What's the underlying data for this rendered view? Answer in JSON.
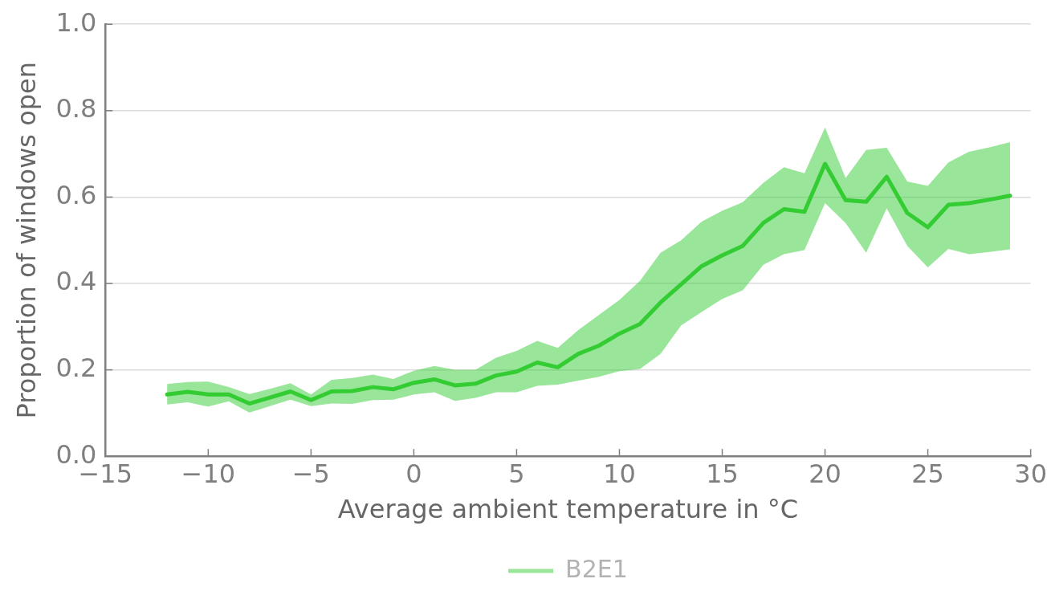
{
  "chart_data": {
    "type": "line",
    "xlabel": "Average ambient temperature in °C",
    "ylabel": "Proportion of windows open",
    "x": [
      -12,
      -11,
      -10,
      -9,
      -8,
      -7,
      -6,
      -5,
      -4,
      -3,
      -2,
      -1,
      0,
      1,
      2,
      3,
      4,
      5,
      6,
      7,
      8,
      9,
      10,
      11,
      12,
      13,
      14,
      15,
      16,
      17,
      18,
      19,
      20,
      21,
      22,
      23,
      24,
      25,
      26,
      27,
      28,
      29
    ],
    "series": [
      {
        "name": "B2E1",
        "color": "#33cc33",
        "values": [
          0.143,
          0.149,
          0.143,
          0.143,
          0.122,
          0.136,
          0.15,
          0.13,
          0.15,
          0.151,
          0.16,
          0.155,
          0.17,
          0.178,
          0.164,
          0.168,
          0.187,
          0.196,
          0.217,
          0.206,
          0.237,
          0.256,
          0.284,
          0.306,
          0.356,
          0.398,
          0.44,
          0.465,
          0.487,
          0.54,
          0.572,
          0.566,
          0.677,
          0.593,
          0.589,
          0.647,
          0.563,
          0.53,
          0.582,
          0.586,
          0.594,
          0.603
        ],
        "upper": [
          0.167,
          0.172,
          0.173,
          0.16,
          0.144,
          0.156,
          0.169,
          0.143,
          0.177,
          0.181,
          0.189,
          0.179,
          0.198,
          0.209,
          0.2,
          0.2,
          0.228,
          0.244,
          0.267,
          0.251,
          0.292,
          0.327,
          0.362,
          0.406,
          0.471,
          0.5,
          0.543,
          0.568,
          0.588,
          0.633,
          0.669,
          0.655,
          0.761,
          0.644,
          0.709,
          0.714,
          0.636,
          0.626,
          0.68,
          0.705,
          0.715,
          0.727
        ],
        "lower": [
          0.12,
          0.125,
          0.115,
          0.127,
          0.101,
          0.116,
          0.131,
          0.116,
          0.122,
          0.121,
          0.13,
          0.131,
          0.143,
          0.148,
          0.128,
          0.135,
          0.148,
          0.148,
          0.163,
          0.166,
          0.175,
          0.184,
          0.197,
          0.202,
          0.237,
          0.303,
          0.334,
          0.364,
          0.384,
          0.443,
          0.468,
          0.477,
          0.586,
          0.54,
          0.471,
          0.574,
          0.487,
          0.437,
          0.48,
          0.468,
          0.473,
          0.479
        ]
      }
    ],
    "xlim": [
      -15,
      30
    ],
    "xticks": [
      {
        "value": -15,
        "label": "−15"
      },
      {
        "value": -10,
        "label": "−10"
      },
      {
        "value": -5,
        "label": "−5"
      },
      0,
      5,
      10,
      15,
      20,
      25,
      30
    ],
    "ylim": [
      0,
      1
    ],
    "yticks": [
      {
        "value": 0,
        "label": "0.0"
      },
      0.2,
      0.4,
      0.6,
      0.8,
      {
        "value": 1,
        "label": "1.0"
      }
    ],
    "grid": "y",
    "legend": "bottom"
  }
}
